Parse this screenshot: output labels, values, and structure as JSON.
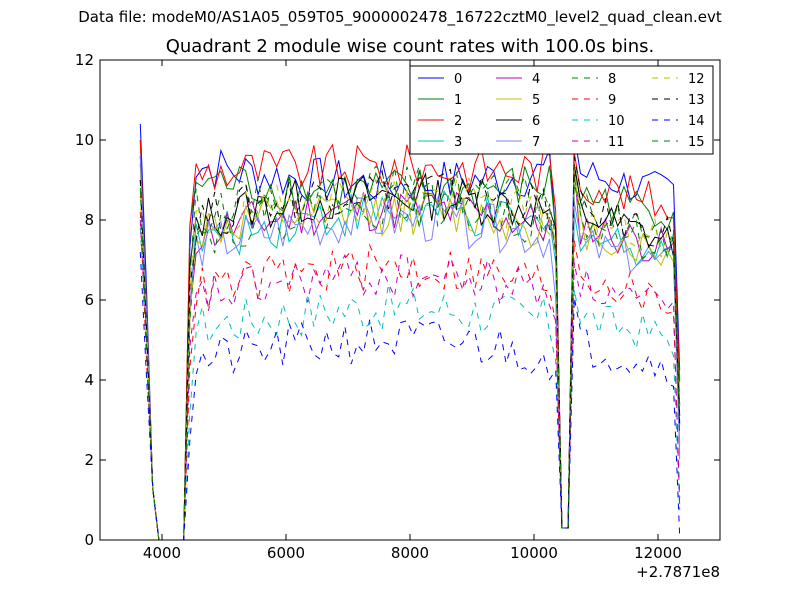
{
  "figure": {
    "suptitle": "Data file: modeM0/AS1A05_059T05_9000002478_16722cztM0_level2_quad_clean.evt"
  },
  "chart_data": {
    "type": "line",
    "title": "Quadrant 2 module wise count rates with 100.0s bins.",
    "xlabel": "",
    "ylabel": "",
    "x_offset_label": "+2.7871e8",
    "xlim": [
      3000,
      13000
    ],
    "ylim": [
      0,
      12
    ],
    "xticks": [
      4000,
      6000,
      8000,
      10000,
      12000
    ],
    "xtick_labels": [
      "4000",
      "6000",
      "8000",
      "10000",
      "12000"
    ],
    "yticks": [
      0,
      2,
      4,
      6,
      8,
      10,
      12
    ],
    "ytick_labels": [
      "0",
      "2",
      "4",
      "6",
      "8",
      "10",
      "12"
    ],
    "grid": false,
    "legend_location": "upper-right",
    "legend_columns": 4,
    "x_segments": [
      {
        "start": 3650,
        "end": 3850,
        "step": 100
      },
      {
        "start": 4450,
        "end": 10350,
        "step": 100
      },
      {
        "start": 10650,
        "end": 12350,
        "step": 100
      }
    ],
    "edge_points": [
      {
        "x": 3950,
        "y": 0
      },
      {
        "x": 4350,
        "y": 0
      },
      {
        "x": 10450,
        "y": 0.3
      },
      {
        "x": 10550,
        "y": 0.3
      }
    ],
    "series": [
      {
        "name": "0",
        "color": "#0000ff",
        "dash": "solid",
        "first": 10.4,
        "left_edge": 0.3,
        "early": 9.4,
        "late": 8.9,
        "end": 8.7,
        "right_start": 9.2,
        "right_end": 8.6
      },
      {
        "name": "1",
        "color": "#008000",
        "dash": "solid",
        "first": 10.0,
        "left_edge": 0.3,
        "early": 9.0,
        "late": 8.7,
        "end": 8.6,
        "right_start": 8.6,
        "right_end": 8.2
      },
      {
        "name": "2",
        "color": "#ff0000",
        "dash": "solid",
        "first": 10.0,
        "left_edge": 0.3,
        "early": 9.2,
        "late": 9.3,
        "end": 9.0,
        "right_start": 9.0,
        "right_end": 8.3
      },
      {
        "name": "3",
        "color": "#00bfbf",
        "dash": "solid",
        "first": 9.6,
        "left_edge": 0.3,
        "early": 7.4,
        "late": 8.2,
        "end": 7.6,
        "right_start": 7.6,
        "right_end": 7.2
      },
      {
        "name": "4",
        "color": "#bf00bf",
        "dash": "solid",
        "first": 9.4,
        "left_edge": 0.3,
        "early": 7.6,
        "late": 8.3,
        "end": 7.8,
        "right_start": 7.9,
        "right_end": 7.2
      },
      {
        "name": "5",
        "color": "#bfbf00",
        "dash": "solid",
        "first": 9.4,
        "left_edge": 0.3,
        "early": 7.7,
        "late": 8.2,
        "end": 7.9,
        "right_start": 7.8,
        "right_end": 7.0
      },
      {
        "name": "6",
        "color": "#000000",
        "dash": "solid",
        "first": 9.6,
        "left_edge": 0.3,
        "early": 8.0,
        "late": 8.6,
        "end": 8.1,
        "right_start": 8.2,
        "right_end": 7.4
      },
      {
        "name": "7",
        "color": "#8080ff",
        "dash": "solid",
        "first": 9.6,
        "left_edge": 0.3,
        "early": 7.3,
        "late": 8.0,
        "end": 7.4,
        "right_start": 7.4,
        "right_end": 6.8
      },
      {
        "name": "8",
        "color": "#008000",
        "dash": "dashed",
        "first": 9.0,
        "left_edge": 0.3,
        "early": 8.2,
        "late": 8.8,
        "end": 8.4,
        "right_start": 8.2,
        "right_end": 7.6
      },
      {
        "name": "9",
        "color": "#ff0000",
        "dash": "dashed",
        "first": 8.2,
        "left_edge": 0.3,
        "early": 6.2,
        "late": 6.8,
        "end": 6.6,
        "right_start": 6.7,
        "right_end": 5.8
      },
      {
        "name": "10",
        "color": "#00bfbf",
        "dash": "dashed",
        "first": 7.8,
        "left_edge": 0.3,
        "early": 5.3,
        "late": 5.8,
        "end": 5.5,
        "right_start": 5.6,
        "right_end": 5.0
      },
      {
        "name": "11",
        "color": "#bf00bf",
        "dash": "dashed",
        "first": 8.0,
        "left_edge": 0.3,
        "early": 6.0,
        "late": 6.6,
        "end": 6.4,
        "right_start": 6.4,
        "right_end": 5.6
      },
      {
        "name": "12",
        "color": "#bfbf00",
        "dash": "dashed",
        "first": 8.6,
        "left_edge": 0.3,
        "early": 7.8,
        "late": 8.6,
        "end": 8.2,
        "right_start": 8.0,
        "right_end": 7.4
      },
      {
        "name": "13",
        "color": "#000000",
        "dash": "dashed",
        "first": 9.0,
        "left_edge": 0.3,
        "early": 8.0,
        "late": 8.8,
        "end": 8.4,
        "right_start": 8.3,
        "right_end": 7.6
      },
      {
        "name": "14",
        "color": "#0000ff",
        "dash": "dashed",
        "first": 7.2,
        "left_edge": 0.3,
        "early": 4.4,
        "late": 5.0,
        "end": 4.8,
        "right_start": 4.9,
        "right_end": 4.3
      },
      {
        "name": "15",
        "color": "#008000",
        "dash": "dashed",
        "first": 8.8,
        "left_edge": 0.3,
        "early": 7.6,
        "late": 8.4,
        "end": 8.0,
        "right_start": 7.9,
        "right_end": 7.3
      }
    ]
  }
}
